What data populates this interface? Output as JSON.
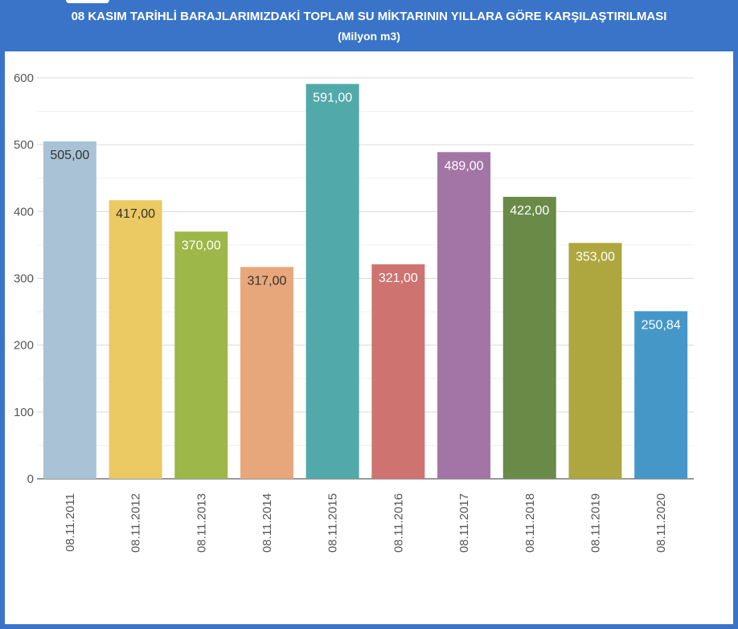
{
  "header": {
    "title": "08 KASIM TARİHLİ BARAJLARIMIZDAKİ TOPLAM SU MİKTARININ YILLARA GÖRE KARŞILAŞTIRILMASI",
    "subtitle": "(Milyon m3)"
  },
  "chart_data": {
    "type": "bar",
    "title": "08 KASIM TARİHLİ BARAJLARIMIZDAKİ TOPLAM SU MİKTARININ YILLARA GÖRE KARŞILAŞTIRILMASI",
    "subtitle": "(Milyon m3)",
    "categories": [
      "08.11.2011",
      "08.11.2012",
      "08.11.2013",
      "08.11.2014",
      "08.11.2015",
      "08.11.2016",
      "08.11.2017",
      "08.11.2018",
      "08.11.2019",
      "08.11.2020"
    ],
    "values": [
      505.0,
      417.0,
      370.0,
      317.0,
      591.0,
      321.0,
      489.0,
      422.0,
      353.0,
      250.84
    ],
    "value_labels": [
      "505,00",
      "417,00",
      "370,00",
      "317,00",
      "591,00",
      "321,00",
      "489,00",
      "422,00",
      "353,00",
      "250,84"
    ],
    "colors": [
      "#a9c2d6",
      "#ebc963",
      "#9db748",
      "#e8a77a",
      "#52a9a9",
      "#cf7370",
      "#a375a6",
      "#6a8b48",
      "#aea73f",
      "#4597c8"
    ],
    "label_colors": [
      "#333333",
      "#333333",
      "#ffffff",
      "#333333",
      "#ffffff",
      "#ffffff",
      "#ffffff",
      "#ffffff",
      "#ffffff",
      "#ffffff"
    ],
    "y_ticks": [
      0,
      100,
      200,
      300,
      400,
      500,
      600
    ],
    "ylim": [
      0,
      600
    ],
    "grid": true,
    "xlabel": "",
    "ylabel": ""
  }
}
